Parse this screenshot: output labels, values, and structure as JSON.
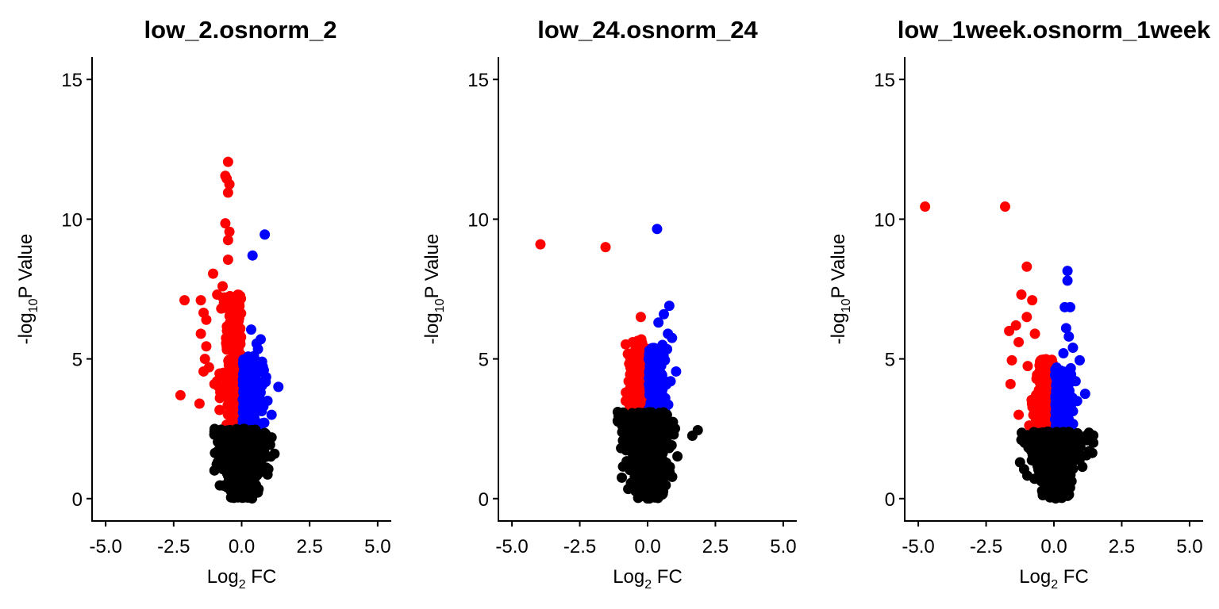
{
  "chart_data": [
    {
      "type": "scatter",
      "title": "low_2.osnorm_2",
      "xlabel": {
        "base": "Log",
        "sub": "2",
        "rest": " FC"
      },
      "ylabel": {
        "pre": "-log",
        "sub": "10",
        "rest": "P Value"
      },
      "xlim": [
        -5.5,
        5.5
      ],
      "ylim": [
        -0.8,
        15.8
      ],
      "xticks": [
        -5,
        -2.5,
        0,
        2.5,
        5
      ],
      "xtick_labels": [
        "-5.0",
        "-2.5",
        "0.0",
        "2.5",
        "5.0"
      ],
      "yticks": [
        0,
        5,
        10,
        15
      ],
      "ytick_labels": [
        "0",
        "5",
        "10",
        "15"
      ],
      "colors": {
        "down": "#ff0000",
        "up": "#0000ff",
        "ns": "#000000"
      },
      "bulk": {
        "ns_xrange": [
          -1.0,
          1.3
        ],
        "ns_ymax": 2.5,
        "down_xmin": -1.1,
        "up_xmax": 1.0,
        "sig_ymin": 2.5
      },
      "series": [
        {
          "group": "down",
          "x": [
            -0.5,
            -0.6,
            -0.55,
            -0.45,
            -0.5,
            -0.6,
            -0.45,
            -0.5,
            -0.5,
            -1.05,
            -2.1,
            -1.5,
            -1.4,
            -1.3,
            -1.5,
            -1.3,
            -1.35,
            -1.2,
            -1.4,
            -1.0,
            -2.25,
            -1.55,
            -0.8,
            -0.7,
            -0.9,
            -0.65,
            -0.75
          ],
          "y": [
            12.05,
            11.55,
            11.45,
            11.25,
            10.95,
            9.85,
            9.55,
            9.25,
            8.55,
            8.05,
            7.1,
            7.1,
            6.65,
            6.4,
            5.9,
            5.45,
            5.0,
            4.7,
            4.55,
            4.1,
            3.7,
            3.4,
            3.6,
            7.6,
            7.3,
            7.0,
            6.8
          ]
        },
        {
          "group": "up",
          "x": [
            0.85,
            0.4,
            0.35,
            0.7,
            1.35,
            0.9,
            0.75,
            1.1,
            0.55,
            0.6,
            0.45,
            0.3,
            0.5,
            0.95,
            0.8
          ],
          "y": [
            9.45,
            8.7,
            6.05,
            5.7,
            4.0,
            4.35,
            4.9,
            3.0,
            5.55,
            5.35,
            5.1,
            4.6,
            4.3,
            3.5,
            3.3
          ]
        }
      ]
    },
    {
      "type": "scatter",
      "title": "low_24.osnorm_24",
      "xlabel": {
        "base": "Log",
        "sub": "2",
        "rest": " FC"
      },
      "ylabel": {
        "pre": "-log",
        "sub": "10",
        "rest": "P Value"
      },
      "xlim": [
        -5.5,
        5.5
      ],
      "ylim": [
        -0.8,
        15.8
      ],
      "xticks": [
        -5,
        -2.5,
        0,
        2.5,
        5
      ],
      "xtick_labels": [
        "-5.0",
        "-2.5",
        "0.0",
        "2.5",
        "5.0"
      ],
      "yticks": [
        0,
        5,
        10,
        15
      ],
      "ytick_labels": [
        "0",
        "5",
        "10",
        "15"
      ],
      "colors": {
        "down": "#ff0000",
        "up": "#0000ff",
        "ns": "#000000"
      },
      "bulk": {
        "ns_xrange": [
          -1.1,
          1.1
        ],
        "ns_ymax": 3.1,
        "down_xmin": -0.85,
        "up_xmax": 0.8,
        "sig_ymin": 3.1
      },
      "series": [
        {
          "group": "down",
          "x": [
            -3.95,
            -1.55,
            -0.25,
            -0.55,
            -0.3,
            -0.4,
            -0.5,
            -0.35,
            -0.7,
            -0.8
          ],
          "y": [
            9.1,
            9.0,
            6.5,
            5.6,
            5.3,
            5.0,
            4.8,
            4.5,
            4.2,
            3.8
          ]
        },
        {
          "group": "up",
          "x": [
            0.35,
            0.8,
            0.6,
            0.4,
            1.05,
            0.75,
            0.9,
            0.55,
            0.45,
            0.3,
            0.85,
            0.65
          ],
          "y": [
            9.65,
            6.9,
            6.6,
            6.3,
            4.55,
            5.9,
            5.75,
            5.5,
            5.2,
            4.9,
            4.2,
            3.6
          ]
        },
        {
          "group": "ns",
          "x": [
            1.85,
            1.65,
            -0.95,
            -1.1
          ],
          "y": [
            2.45,
            2.25,
            0.75,
            3.1
          ]
        }
      ]
    },
    {
      "type": "scatter",
      "title": "low_1week.osnorm_1week",
      "xlabel": {
        "base": "Log",
        "sub": "2",
        "rest": " FC"
      },
      "ylabel": {
        "pre": "-log",
        "sub": "10",
        "rest": "P Value"
      },
      "xlim": [
        -5.5,
        5.5
      ],
      "ylim": [
        -0.8,
        15.8
      ],
      "xticks": [
        -5,
        -2.5,
        0,
        2.5,
        5
      ],
      "xtick_labels": [
        "-5.0",
        "-2.5",
        "0.0",
        "2.5",
        "5.0"
      ],
      "yticks": [
        0,
        5,
        10,
        15
      ],
      "ytick_labels": [
        "0",
        "5",
        "10",
        "15"
      ],
      "colors": {
        "down": "#ff0000",
        "up": "#0000ff",
        "ns": "#000000"
      },
      "bulk": {
        "ns_xrange": [
          -1.2,
          1.45
        ],
        "ns_ymax": 2.4,
        "down_xmin": -1.2,
        "up_xmax": 0.95,
        "sig_ymin": 2.4
      },
      "series": [
        {
          "group": "down",
          "x": [
            -4.75,
            -1.8,
            -1.0,
            -1.2,
            -0.8,
            -1.0,
            -1.65,
            -1.4,
            -1.3,
            -1.55,
            -1.6,
            -1.3,
            -0.7
          ],
          "y": [
            10.45,
            10.45,
            8.3,
            7.3,
            7.1,
            6.5,
            6.0,
            6.2,
            5.6,
            4.95,
            4.1,
            3.0,
            5.9
          ]
        },
        {
          "group": "up",
          "x": [
            0.5,
            0.5,
            0.4,
            0.6,
            0.45,
            0.55,
            0.7,
            0.35,
            0.95,
            0.8,
            1.15,
            0.65
          ],
          "y": [
            8.15,
            7.8,
            6.85,
            6.85,
            6.1,
            5.8,
            5.4,
            5.2,
            4.95,
            4.2,
            3.75,
            3.4
          ]
        },
        {
          "group": "ns",
          "x": [
            1.45,
            1.3,
            1.2,
            -1.25,
            -1.1
          ],
          "y": [
            2.0,
            1.7,
            1.55,
            1.3,
            1.05
          ]
        }
      ]
    }
  ]
}
